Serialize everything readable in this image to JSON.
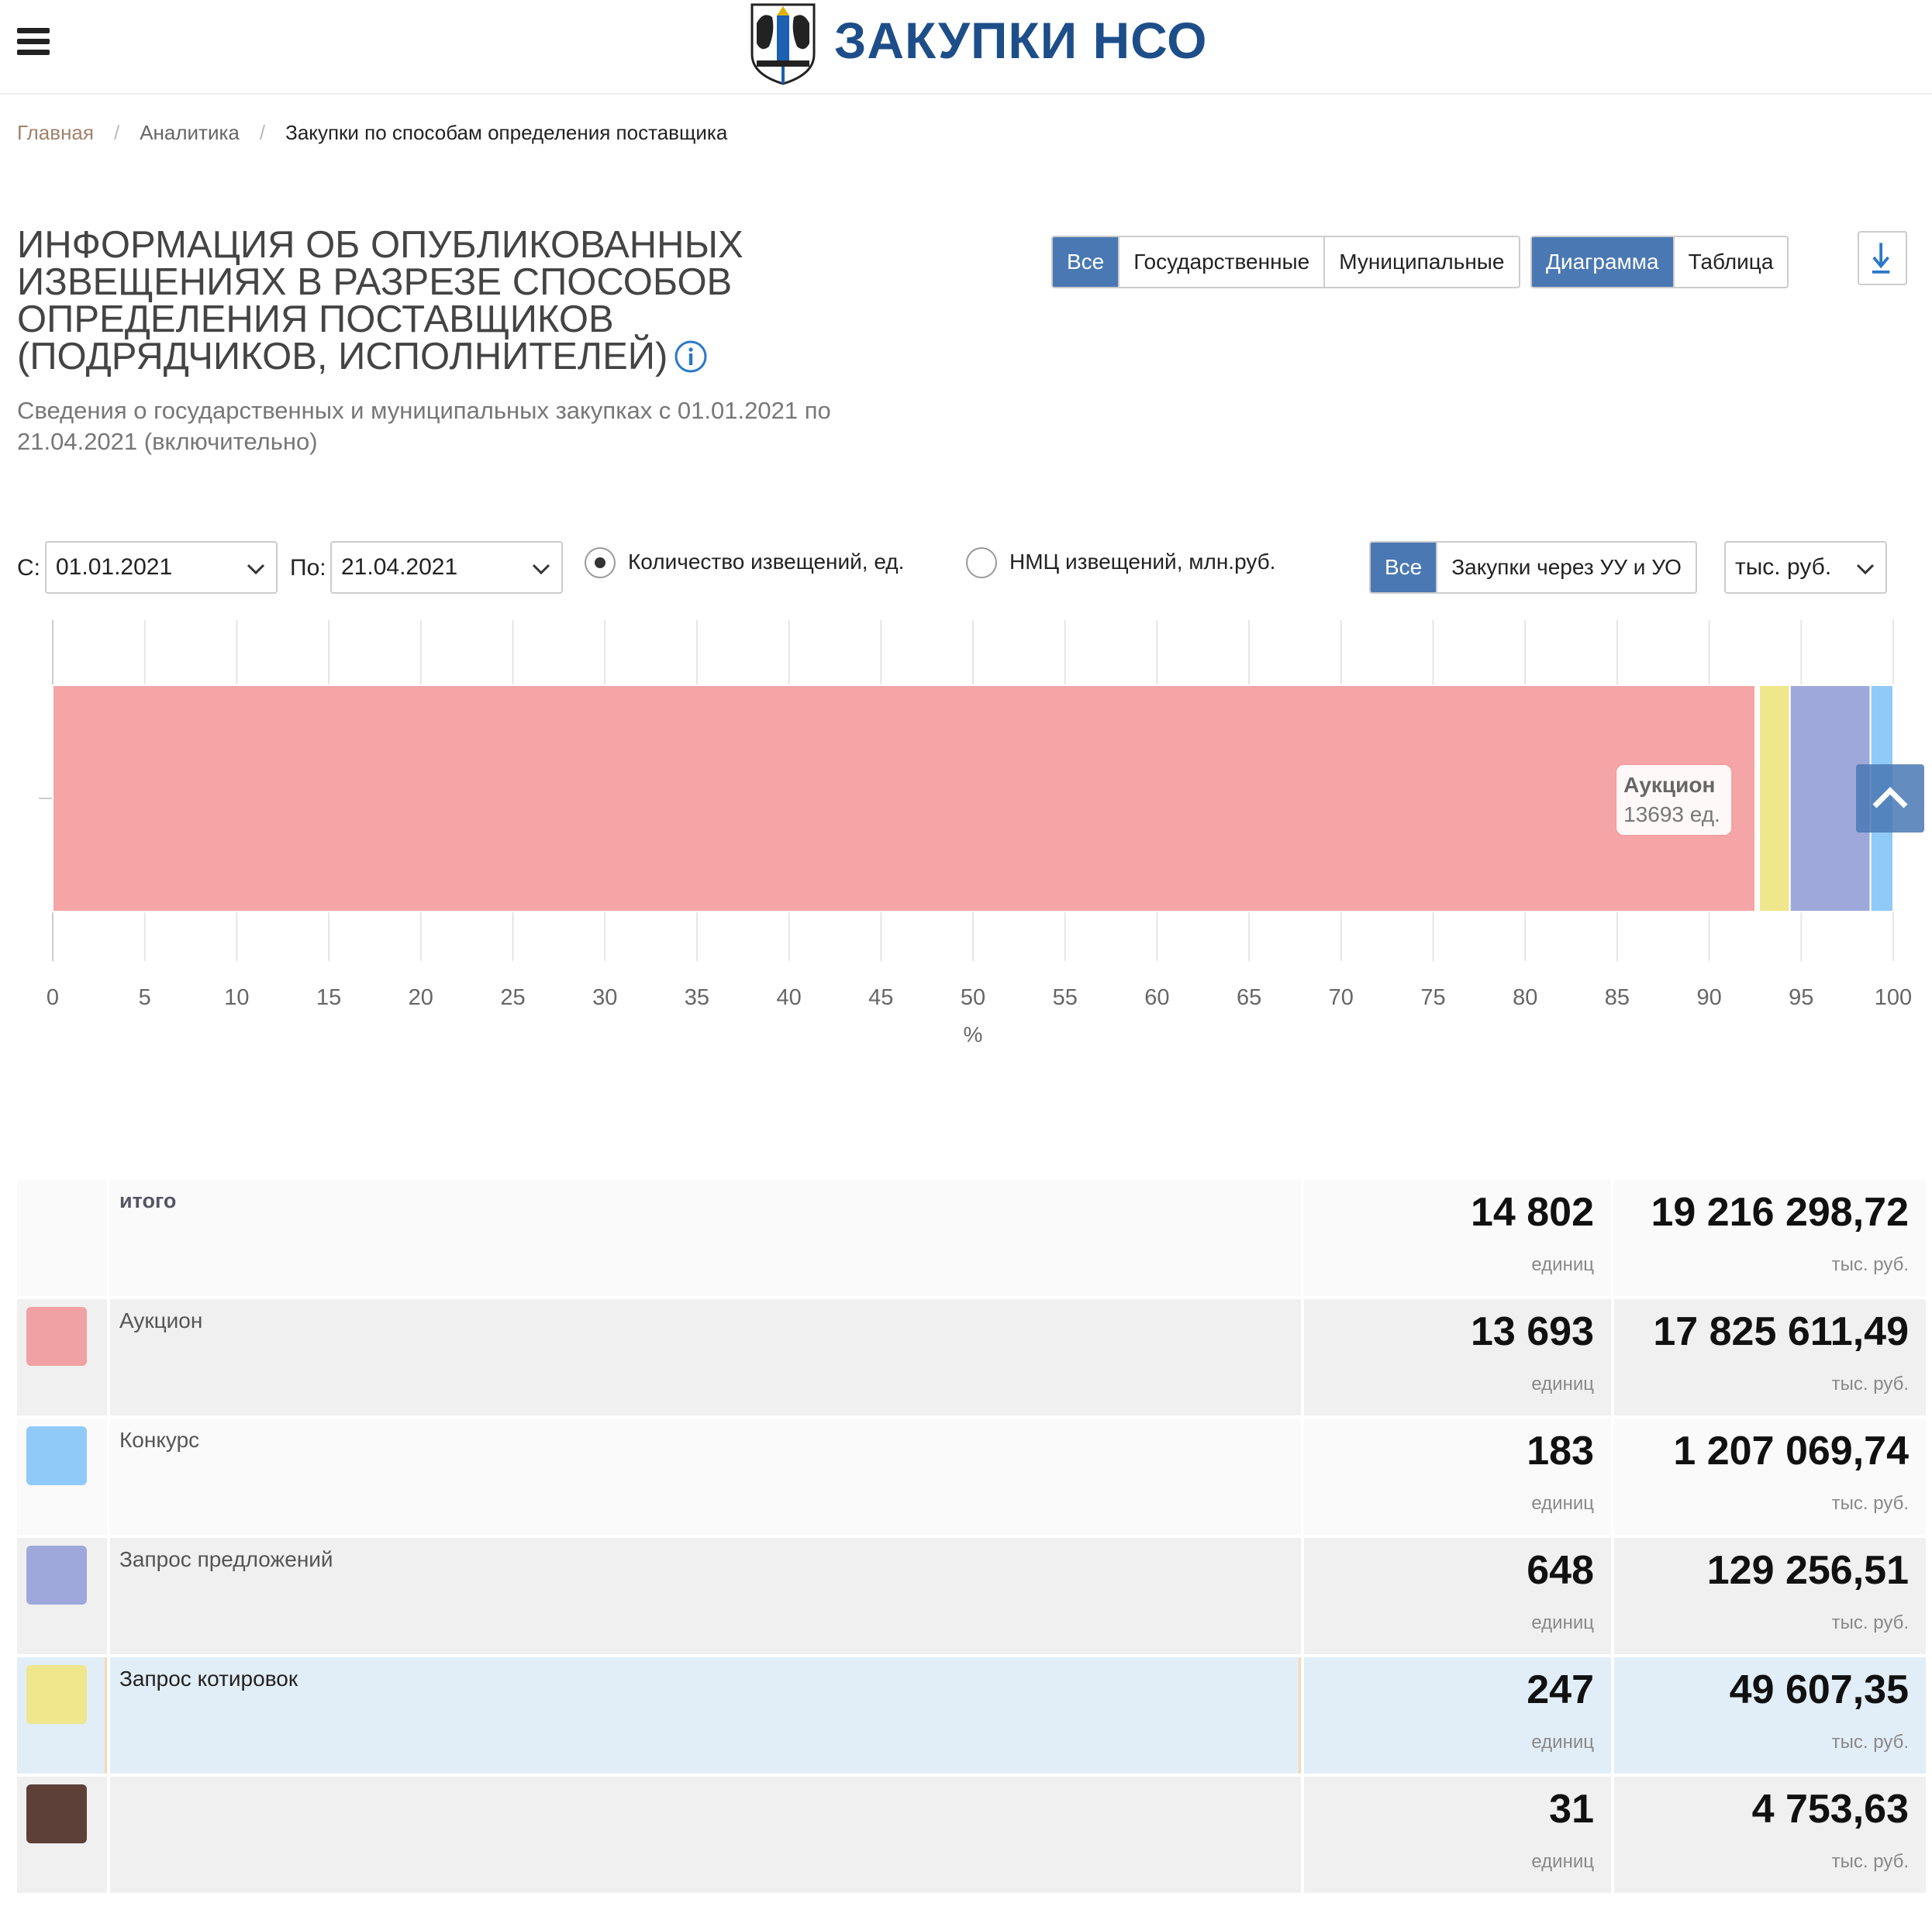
{
  "header": {
    "brand": "ЗАКУПКИ НСО"
  },
  "breadcrumb": [
    "Главная",
    "Аналитика",
    "Закупки по способам определения поставщика"
  ],
  "title": "ИНФОРМАЦИЯ ОБ ОПУБЛИКОВАННЫХ ИЗВЕЩЕНИЯХ В РАЗРЕЗЕ СПОСОБОВ ОПРЕДЕЛЕНИЯ ПОСТАВЩИКОВ (ПОДРЯДЧИКОВ, ИСПОЛНИТЕЛЕЙ)",
  "subtitle": "Сведения о государственных и муниципальных закупках с 01.01.2021 по 21.04.2021 (включительно)",
  "filters": {
    "scope": [
      "Все",
      "Государственные",
      "Муниципальные"
    ],
    "scope_active": "Все",
    "view": [
      "Диаграмма",
      "Таблица"
    ],
    "view_active": "Диаграмма",
    "from_label": "С:",
    "from_value": "01.01.2021",
    "to_label": "По:",
    "to_value": "21.04.2021",
    "metric_count": "Количество извещений, ед.",
    "metric_nmc": "НМЦ извещений, млн.руб.",
    "metric_selected": "count",
    "purchase": [
      "Все",
      "Закупки через УУ и УО"
    ],
    "purchase_active": "Все",
    "units": "тыс. руб."
  },
  "chart_data": {
    "type": "bar",
    "orientation": "horizontal-stacked-percent",
    "xlabel": "%",
    "xlim": [
      0,
      100
    ],
    "xticks": [
      0,
      5,
      10,
      15,
      20,
      25,
      30,
      35,
      40,
      45,
      50,
      55,
      60,
      65,
      70,
      75,
      80,
      85,
      90,
      95,
      100
    ],
    "series": [
      {
        "name": "Аукцион",
        "value": 13693,
        "color": "#f5a5a6"
      },
      {
        "value": 31,
        "color": "#ffffff"
      },
      {
        "name": "Запрос котировок",
        "value": 247,
        "color": "#f0e68c"
      },
      {
        "name": "Запрос предложений",
        "value": 648,
        "color": "#9fa8da"
      },
      {
        "name": "Конкурс",
        "value": 183,
        "color": "#90caf9"
      }
    ],
    "tooltip": {
      "title": "Аукцион",
      "value": "13693 ед."
    }
  },
  "table": {
    "count_unit": "единиц",
    "sum_unit": "тыс. руб.",
    "total": {
      "name": "итого",
      "count": "14 802",
      "sum": "19 216 298,72"
    },
    "rows": [
      {
        "name": "Аукцион",
        "count": "13 693",
        "sum": "17 825 611,49",
        "color": "#f0a1a3"
      },
      {
        "name": "Конкурс",
        "count": "183",
        "sum": "1 207 069,74",
        "color": "#90caf9"
      },
      {
        "name": "Запрос предложений",
        "count": "648",
        "sum": "129 256,51",
        "color": "#9fa8da"
      },
      {
        "name": "Запрос котировок",
        "count": "247",
        "sum": "49 607,35",
        "color": "#f0e68c"
      },
      {
        "name": "",
        "count": "31",
        "sum": "4 753,63",
        "color": "#5d4037"
      }
    ]
  }
}
